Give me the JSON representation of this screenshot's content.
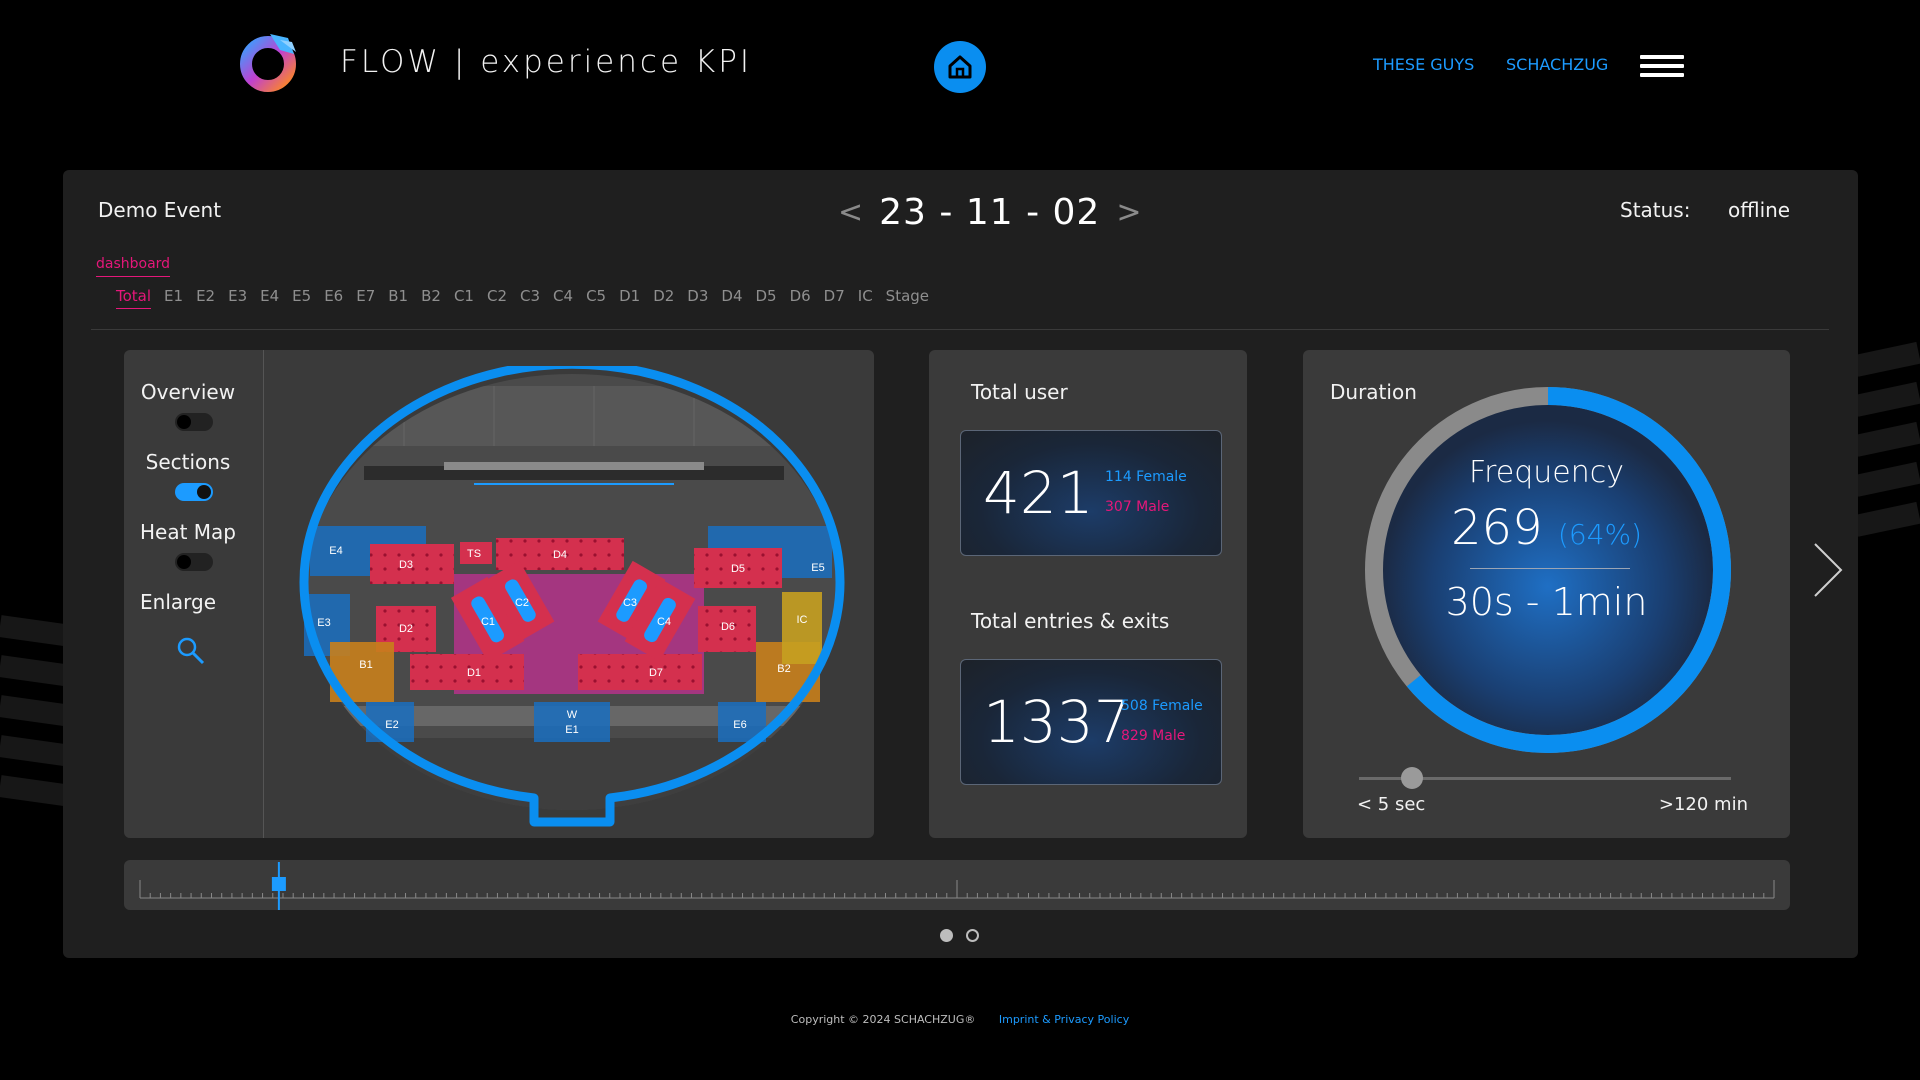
{
  "header": {
    "app_title": "FLOW | experience KPI",
    "nav_links": [
      "THESE GUYS",
      "SCHACHZUG"
    ],
    "logo_icon": "flow-logo-icon",
    "home_icon": "home-icon",
    "menu_icon": "hamburger-icon"
  },
  "event": {
    "name": "Demo Event",
    "date": "23 - 11 - 02",
    "prev": "<",
    "next": ">",
    "status_label": "Status:",
    "status_value": "offline"
  },
  "dashboard_label": "dashboard",
  "tabs": [
    "Total",
    "E1",
    "E2",
    "E3",
    "E4",
    "E5",
    "E6",
    "E7",
    "B1",
    "B2",
    "C1",
    "C2",
    "C3",
    "C4",
    "C5",
    "D1",
    "D2",
    "D3",
    "D4",
    "D5",
    "D6",
    "D7",
    "IC",
    "Stage"
  ],
  "active_tab": "Total",
  "map_controls": {
    "overview": {
      "label": "Overview",
      "on": false
    },
    "sections": {
      "label": "Sections",
      "on": true
    },
    "heatmap": {
      "label": "Heat Map",
      "on": false
    },
    "enlarge": {
      "label": "Enlarge"
    }
  },
  "map_sections": [
    "E4",
    "D3",
    "TS",
    "D4",
    "D5",
    "E5",
    "C2",
    "C3",
    "E3",
    "D2",
    "C1",
    "C4",
    "D6",
    "IC",
    "B1",
    "D1",
    "D7",
    "B2",
    "E2",
    "W",
    "E1",
    "E6"
  ],
  "total_user": {
    "title": "Total user",
    "value": "421",
    "female": "114 Female",
    "male": "307 Male"
  },
  "entries_exits": {
    "title": "Total entries & exits",
    "value": "1337",
    "female": "508 Female",
    "male": "829 Male"
  },
  "duration": {
    "title": "Duration",
    "frequency_label": "Frequency",
    "frequency_value": "269",
    "frequency_percent": "(64%)",
    "frequency_fraction": 0.64,
    "range": "30s - 1min",
    "slider_min": "< 5 sec",
    "slider_max": ">120 min"
  },
  "timeline": {
    "position_fraction": 0.085
  },
  "pagination": {
    "pages": 2,
    "active": 0
  },
  "footer": {
    "copyright": "Copyright © 2024 SCHACHZUG®",
    "imprint": "Imprint & Privacy Policy"
  },
  "colors": {
    "accent_blue": "#1c9bff",
    "accent_pink": "#e5177a",
    "panel": "#1f1f1f",
    "card": "#3a3a3a"
  }
}
